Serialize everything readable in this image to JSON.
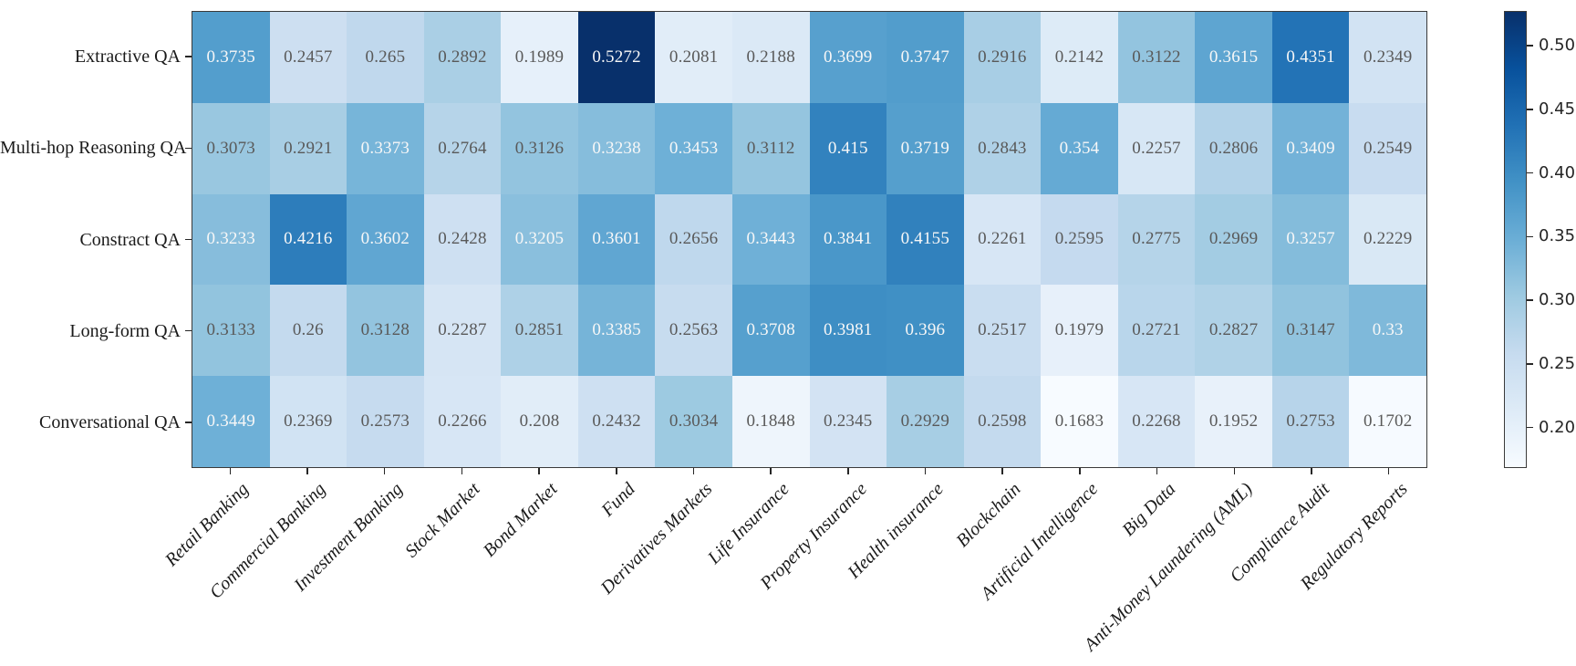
{
  "figure": {
    "background": "#ffffff",
    "spine_color": "#3a3a3a",
    "tick_color": "#262626",
    "axis_label_color": "#1a1a1a",
    "annotation_gray": "#595959",
    "annotation_white": "#f7f7f7"
  },
  "chart_data": {
    "type": "heatmap",
    "title": "",
    "xlabel": "",
    "ylabel": "",
    "colormap": "Blues",
    "colormap_stops": [
      "#f7fbff",
      "#deebf7",
      "#c6dbef",
      "#9ecae1",
      "#6baed6",
      "#4292c6",
      "#2171b5",
      "#08519c",
      "#08306b"
    ],
    "vmin": 0.1683,
    "vmax": 0.5272,
    "white_text_threshold": 0.318,
    "rows": [
      "Extractive QA",
      "Multi-hop Reasoning QA",
      "Constract QA",
      "Long-form QA",
      "Conversational QA"
    ],
    "columns": [
      "Retail Banking",
      "Commercial Banking",
      "Investment Banking",
      "Stock Market",
      "Bond Market",
      "Fund",
      "Derivatives Markets",
      "Life Insurance",
      "Property Insurance",
      "Health insurance",
      "Blockchain",
      "Artificial Intelligence",
      "Big Data",
      "Anti-Money Laundering (AML)",
      "Compliance Audit",
      "Regulatory Reports"
    ],
    "values": [
      [
        0.3735,
        0.2457,
        0.265,
        0.2892,
        0.1989,
        0.5272,
        0.2081,
        0.2188,
        0.3699,
        0.3747,
        0.2916,
        0.2142,
        0.3122,
        0.3615,
        0.4351,
        0.2349
      ],
      [
        0.3073,
        0.2921,
        0.3373,
        0.2764,
        0.3126,
        0.3238,
        0.3453,
        0.3112,
        0.415,
        0.3719,
        0.2843,
        0.354,
        0.2257,
        0.2806,
        0.3409,
        0.2549
      ],
      [
        0.3233,
        0.4216,
        0.3602,
        0.2428,
        0.3205,
        0.3601,
        0.2656,
        0.3443,
        0.3841,
        0.4155,
        0.2261,
        0.2595,
        0.2775,
        0.2969,
        0.3257,
        0.2229
      ],
      [
        0.3133,
        0.26,
        0.3128,
        0.2287,
        0.2851,
        0.3385,
        0.2563,
        0.3708,
        0.3981,
        0.396,
        0.2517,
        0.1979,
        0.2721,
        0.2827,
        0.3147,
        0.33
      ],
      [
        0.3449,
        0.2369,
        0.2573,
        0.2266,
        0.208,
        0.2432,
        0.3034,
        0.1848,
        0.2345,
        0.2929,
        0.2598,
        0.1683,
        0.2268,
        0.1952,
        0.2753,
        0.1702
      ]
    ],
    "colorbar": {
      "position": "right",
      "tick_labels": [
        "0.50",
        "0.45",
        "0.40",
        "0.35",
        "0.30",
        "0.25",
        "0.20"
      ],
      "tick_values": [
        0.5,
        0.45,
        0.4,
        0.35,
        0.3,
        0.25,
        0.2
      ]
    },
    "legend_position": "none",
    "grid": false
  }
}
